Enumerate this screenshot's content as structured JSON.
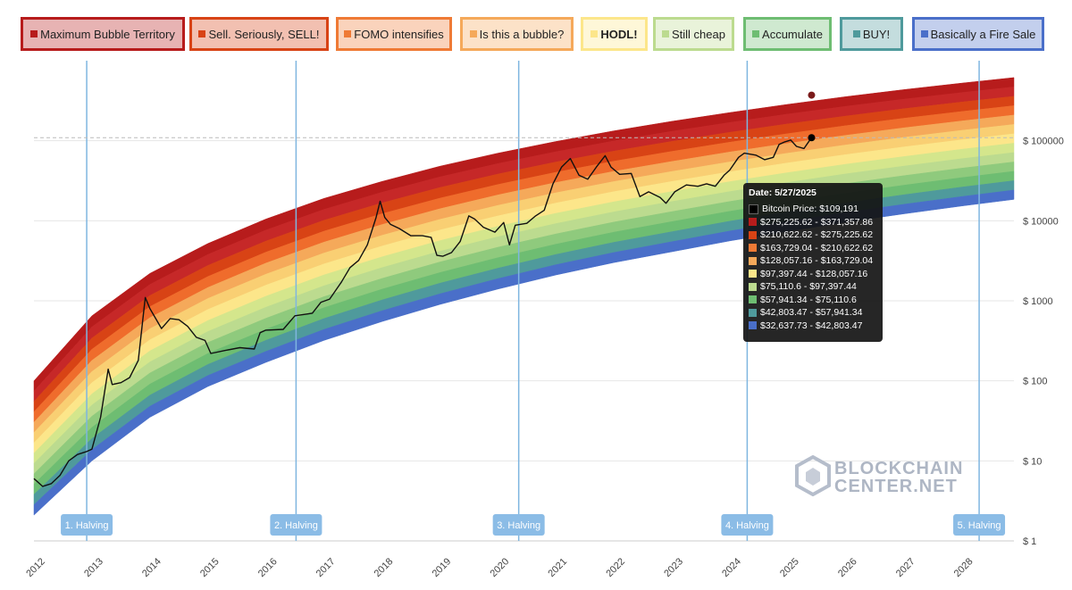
{
  "legend": [
    {
      "label": "Maximum Bubble Territory",
      "color": "#b71c1c",
      "bold": false
    },
    {
      "label": "Sell. Seriously, SELL!",
      "color": "#d84315",
      "bold": false
    },
    {
      "label": "FOMO intensifies",
      "color": "#ef7a35",
      "bold": false
    },
    {
      "label": "Is this a bubble?",
      "color": "#f5a95a",
      "bold": false
    },
    {
      "label": "HODL!",
      "color": "#fce68a",
      "bold": true
    },
    {
      "label": "Still cheap",
      "color": "#bcdb8f",
      "bold": false
    },
    {
      "label": "Accumulate",
      "color": "#6ebd72",
      "bold": false
    },
    {
      "label": "BUY!",
      "color": "#4f9a9c",
      "bold": false
    },
    {
      "label": "Basically a Fire Sale",
      "color": "#4a6fc9",
      "bold": false
    }
  ],
  "chart_data": {
    "type": "area",
    "scale": "log",
    "ylim": [
      1,
      1000000
    ],
    "xlim": [
      2012.0,
      2028.9
    ],
    "y_ticks": [
      {
        "value": 1,
        "label": "$ 1"
      },
      {
        "value": 10,
        "label": "$ 10"
      },
      {
        "value": 100,
        "label": "$ 100"
      },
      {
        "value": 1000,
        "label": "$ 1000"
      },
      {
        "value": 10000,
        "label": "$ 10000"
      },
      {
        "value": 100000,
        "label": "$ 100000"
      }
    ],
    "x_ticks": [
      "2012",
      "2013",
      "2014",
      "2015",
      "2016",
      "2017",
      "2018",
      "2019",
      "2020",
      "2021",
      "2022",
      "2023",
      "2024",
      "2025",
      "2026",
      "2027",
      "2028"
    ],
    "rainbow_bands_upper_edge": [
      {
        "x": 2012.0,
        "top": 100,
        "bottom": 2.1
      },
      {
        "x": 2013.0,
        "top": 650,
        "bottom": 10
      },
      {
        "x": 2014.0,
        "top": 2200,
        "bottom": 35
      },
      {
        "x": 2015.0,
        "top": 5200,
        "bottom": 85
      },
      {
        "x": 2016.0,
        "top": 10500,
        "bottom": 170
      },
      {
        "x": 2017.0,
        "top": 19000,
        "bottom": 320
      },
      {
        "x": 2018.0,
        "top": 31000,
        "bottom": 550
      },
      {
        "x": 2019.0,
        "top": 48000,
        "bottom": 900
      },
      {
        "x": 2020.0,
        "top": 70000,
        "bottom": 1400
      },
      {
        "x": 2021.0,
        "top": 98000,
        "bottom": 2100
      },
      {
        "x": 2022.0,
        "top": 133000,
        "bottom": 3000
      },
      {
        "x": 2023.0,
        "top": 175000,
        "bottom": 4100
      },
      {
        "x": 2024.0,
        "top": 225000,
        "bottom": 5600
      },
      {
        "x": 2025.0,
        "top": 285000,
        "bottom": 7400
      },
      {
        "x": 2026.0,
        "top": 355000,
        "bottom": 9600
      },
      {
        "x": 2027.0,
        "top": 435000,
        "bottom": 12200
      },
      {
        "x": 2028.0,
        "top": 525000,
        "bottom": 15300
      },
      {
        "x": 2028.9,
        "top": 615000,
        "bottom": 18500
      }
    ],
    "band_colors": [
      "#b71c1c",
      "#c62828",
      "#d84315",
      "#ef6c2c",
      "#f5a95a",
      "#f9cf73",
      "#fce68a",
      "#d4e68c",
      "#bcdb8f",
      "#8fca7d",
      "#6ebd72",
      "#4f9a9c",
      "#4a6fc9"
    ],
    "price_series": {
      "name": "Bitcoin Price",
      "points": [
        [
          2012.0,
          6
        ],
        [
          2012.15,
          4.8
        ],
        [
          2012.3,
          5.2
        ],
        [
          2012.45,
          6.6
        ],
        [
          2012.6,
          10
        ],
        [
          2012.75,
          12
        ],
        [
          2012.9,
          13
        ],
        [
          2013.0,
          14
        ],
        [
          2013.15,
          35
        ],
        [
          2013.28,
          140
        ],
        [
          2013.35,
          90
        ],
        [
          2013.5,
          95
        ],
        [
          2013.65,
          110
        ],
        [
          2013.8,
          180
        ],
        [
          2013.92,
          1100
        ],
        [
          2014.0,
          800
        ],
        [
          2014.1,
          600
        ],
        [
          2014.2,
          450
        ],
        [
          2014.35,
          600
        ],
        [
          2014.5,
          580
        ],
        [
          2014.65,
          480
        ],
        [
          2014.8,
          350
        ],
        [
          2014.95,
          320
        ],
        [
          2015.05,
          220
        ],
        [
          2015.3,
          240
        ],
        [
          2015.55,
          260
        ],
        [
          2015.8,
          250
        ],
        [
          2015.9,
          400
        ],
        [
          2016.0,
          430
        ],
        [
          2016.3,
          440
        ],
        [
          2016.5,
          650
        ],
        [
          2016.8,
          700
        ],
        [
          2016.95,
          960
        ],
        [
          2017.1,
          1050
        ],
        [
          2017.3,
          1700
        ],
        [
          2017.45,
          2600
        ],
        [
          2017.6,
          3200
        ],
        [
          2017.75,
          5000
        ],
        [
          2017.9,
          11000
        ],
        [
          2017.97,
          17500
        ],
        [
          2018.05,
          11000
        ],
        [
          2018.15,
          9000
        ],
        [
          2018.3,
          8000
        ],
        [
          2018.5,
          6500
        ],
        [
          2018.7,
          6500
        ],
        [
          2018.85,
          6200
        ],
        [
          2018.95,
          3700
        ],
        [
          2019.05,
          3600
        ],
        [
          2019.2,
          4000
        ],
        [
          2019.35,
          5500
        ],
        [
          2019.5,
          11500
        ],
        [
          2019.6,
          10500
        ],
        [
          2019.75,
          8300
        ],
        [
          2019.95,
          7200
        ],
        [
          2020.1,
          9500
        ],
        [
          2020.2,
          5000
        ],
        [
          2020.3,
          8800
        ],
        [
          2020.5,
          9300
        ],
        [
          2020.65,
          11500
        ],
        [
          2020.8,
          13500
        ],
        [
          2020.95,
          29000
        ],
        [
          2021.1,
          47000
        ],
        [
          2021.25,
          60000
        ],
        [
          2021.4,
          37000
        ],
        [
          2021.55,
          33000
        ],
        [
          2021.7,
          47000
        ],
        [
          2021.85,
          65000
        ],
        [
          2021.95,
          47000
        ],
        [
          2022.1,
          38000
        ],
        [
          2022.3,
          39000
        ],
        [
          2022.45,
          20000
        ],
        [
          2022.6,
          23000
        ],
        [
          2022.8,
          19500
        ],
        [
          2022.9,
          16500
        ],
        [
          2023.05,
          23000
        ],
        [
          2023.25,
          28000
        ],
        [
          2023.45,
          27000
        ],
        [
          2023.6,
          29000
        ],
        [
          2023.75,
          27000
        ],
        [
          2023.9,
          37000
        ],
        [
          2024.0,
          43000
        ],
        [
          2024.15,
          62000
        ],
        [
          2024.25,
          70000
        ],
        [
          2024.45,
          66000
        ],
        [
          2024.6,
          58000
        ],
        [
          2024.75,
          62000
        ],
        [
          2024.85,
          90000
        ],
        [
          2024.95,
          97000
        ],
        [
          2025.05,
          102000
        ],
        [
          2025.15,
          85000
        ],
        [
          2025.28,
          80000
        ],
        [
          2025.35,
          95000
        ],
        [
          2025.41,
          109191
        ]
      ]
    },
    "current_marker": {
      "x": 2025.41,
      "y": 109191
    },
    "upper_marker": {
      "x": 2025.41,
      "y": 371357
    },
    "halvings": [
      {
        "label": "1. Halving",
        "x": 2012.91
      },
      {
        "label": "2. Halving",
        "x": 2016.52
      },
      {
        "label": "3. Halving",
        "x": 2020.36
      },
      {
        "label": "4. Halving",
        "x": 2024.3
      },
      {
        "label": "5. Halving",
        "x": 2028.3
      }
    ]
  },
  "tooltip": {
    "date": "Date: 5/27/2025",
    "rows": [
      {
        "color": "#000000",
        "text": "Bitcoin Price: $109,191"
      },
      {
        "color": "#b71c1c",
        "text": "$275,225.62 - $371,357.86"
      },
      {
        "color": "#d84315",
        "text": "$210,622.62 - $275,225.62"
      },
      {
        "color": "#ef7a35",
        "text": "$163,729.04 - $210,622.62"
      },
      {
        "color": "#f5a95a",
        "text": "$128,057.16 - $163,729.04"
      },
      {
        "color": "#fce68a",
        "text": "$97,397.44 - $128,057.16"
      },
      {
        "color": "#bcdb8f",
        "text": "$75,110.6 - $97,397.44"
      },
      {
        "color": "#6ebd72",
        "text": "$57,941.34 - $75,110.6"
      },
      {
        "color": "#4f9a9c",
        "text": "$42,803.47 - $57,941.34"
      },
      {
        "color": "#4a6fc9",
        "text": "$32,637.73 - $42,803.47"
      }
    ]
  },
  "watermark": {
    "line1": "BLOCKCHAIN",
    "line2": "CENTER.NET"
  }
}
